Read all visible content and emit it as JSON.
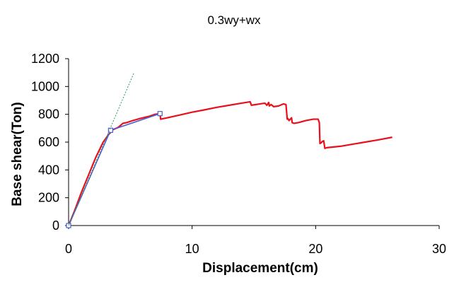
{
  "chart_data": {
    "type": "line",
    "title": "0.3wy+wx",
    "xlabel": "Displacement(cm)",
    "ylabel": "Base shear(Ton)",
    "xlim": [
      0,
      30
    ],
    "ylim": [
      0,
      1200
    ],
    "xticks": [
      "0",
      "10",
      "20",
      "30"
    ],
    "yticks": [
      "0",
      "200",
      "400",
      "600",
      "800",
      "1000",
      "1200"
    ],
    "grid": false,
    "legend": "none",
    "series": [
      {
        "color": "#e8101a",
        "style": "solid",
        "x": [
          0,
          0.5,
          1.0,
          1.6,
          2.2,
          2.8,
          3.2,
          3.6,
          4.0,
          4.4,
          4.7,
          5.2,
          5.8,
          6.5,
          7.0,
          7.4,
          7.45,
          8.0,
          9.0,
          10.0,
          11.0,
          12.0,
          13.0,
          14.0,
          14.7,
          14.8,
          15.5,
          15.9,
          16.05,
          16.2,
          16.25,
          16.4,
          16.6,
          17.0,
          17.4,
          17.6,
          17.7,
          17.75,
          17.85,
          18.05,
          18.1,
          18.25,
          18.6,
          19.2,
          19.8,
          20.2,
          20.3,
          20.35,
          20.45,
          20.55,
          20.65,
          20.75,
          20.9,
          22.0,
          23.0,
          24.0,
          25.0,
          26.2
        ],
        "y": [
          0,
          110,
          230,
          360,
          490,
          600,
          650,
          690,
          705,
          735,
          740,
          755,
          770,
          785,
          800,
          805,
          765,
          775,
          795,
          815,
          832,
          850,
          865,
          880,
          890,
          865,
          875,
          880,
          865,
          885,
          860,
          870,
          855,
          860,
          875,
          870,
          765,
          770,
          755,
          775,
          740,
          735,
          740,
          755,
          765,
          765,
          740,
          590,
          595,
          605,
          610,
          555,
          560,
          570,
          585,
          600,
          615,
          635
        ]
      },
      {
        "color": "#4a5fd0",
        "style": "solid",
        "markers": "square",
        "x": [
          0,
          3.4,
          7.4
        ],
        "y": [
          0,
          685,
          805
        ]
      },
      {
        "color": "#2a9a5a",
        "style": "dotted",
        "x": [
          0,
          5.3
        ],
        "y": [
          0,
          1100
        ]
      }
    ]
  }
}
